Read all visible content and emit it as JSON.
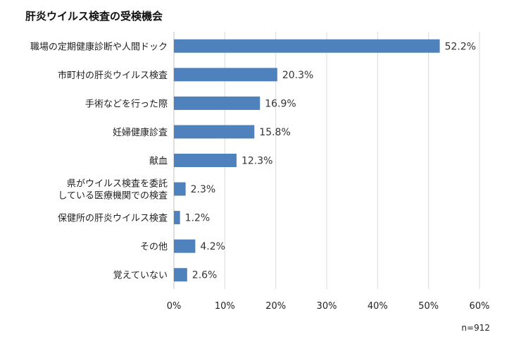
{
  "chart_data": {
    "type": "bar",
    "orientation": "horizontal",
    "title": "肝炎ウイルス検査の受検機会",
    "categories": [
      "職場の定期健康診断や人間ドック",
      "市町村の肝炎ウイルス検査",
      "手術などを行った際",
      "妊婦健康診査",
      "献血",
      "県がウイルス検査を委託\nしている医療機関での検査",
      "保健所の肝炎ウイルス検査",
      "その他",
      "覚えていない"
    ],
    "values": [
      52.2,
      20.3,
      16.9,
      15.8,
      12.3,
      2.3,
      1.2,
      4.2,
      2.6
    ],
    "value_labels": [
      "52.2%",
      "20.3%",
      "16.9%",
      "15.8%",
      "12.3%",
      "2.3%",
      "1.2%",
      "4.2%",
      "2.6%"
    ],
    "xlim": [
      0,
      60
    ],
    "xticks": [
      "0%",
      "10%",
      "20%",
      "30%",
      "40%",
      "50%",
      "60%"
    ],
    "xlabel": "",
    "ylabel": "",
    "grid": true,
    "note": "n=912",
    "bar_color": "#4f81bd",
    "grid_color": "#d9d9d9"
  }
}
